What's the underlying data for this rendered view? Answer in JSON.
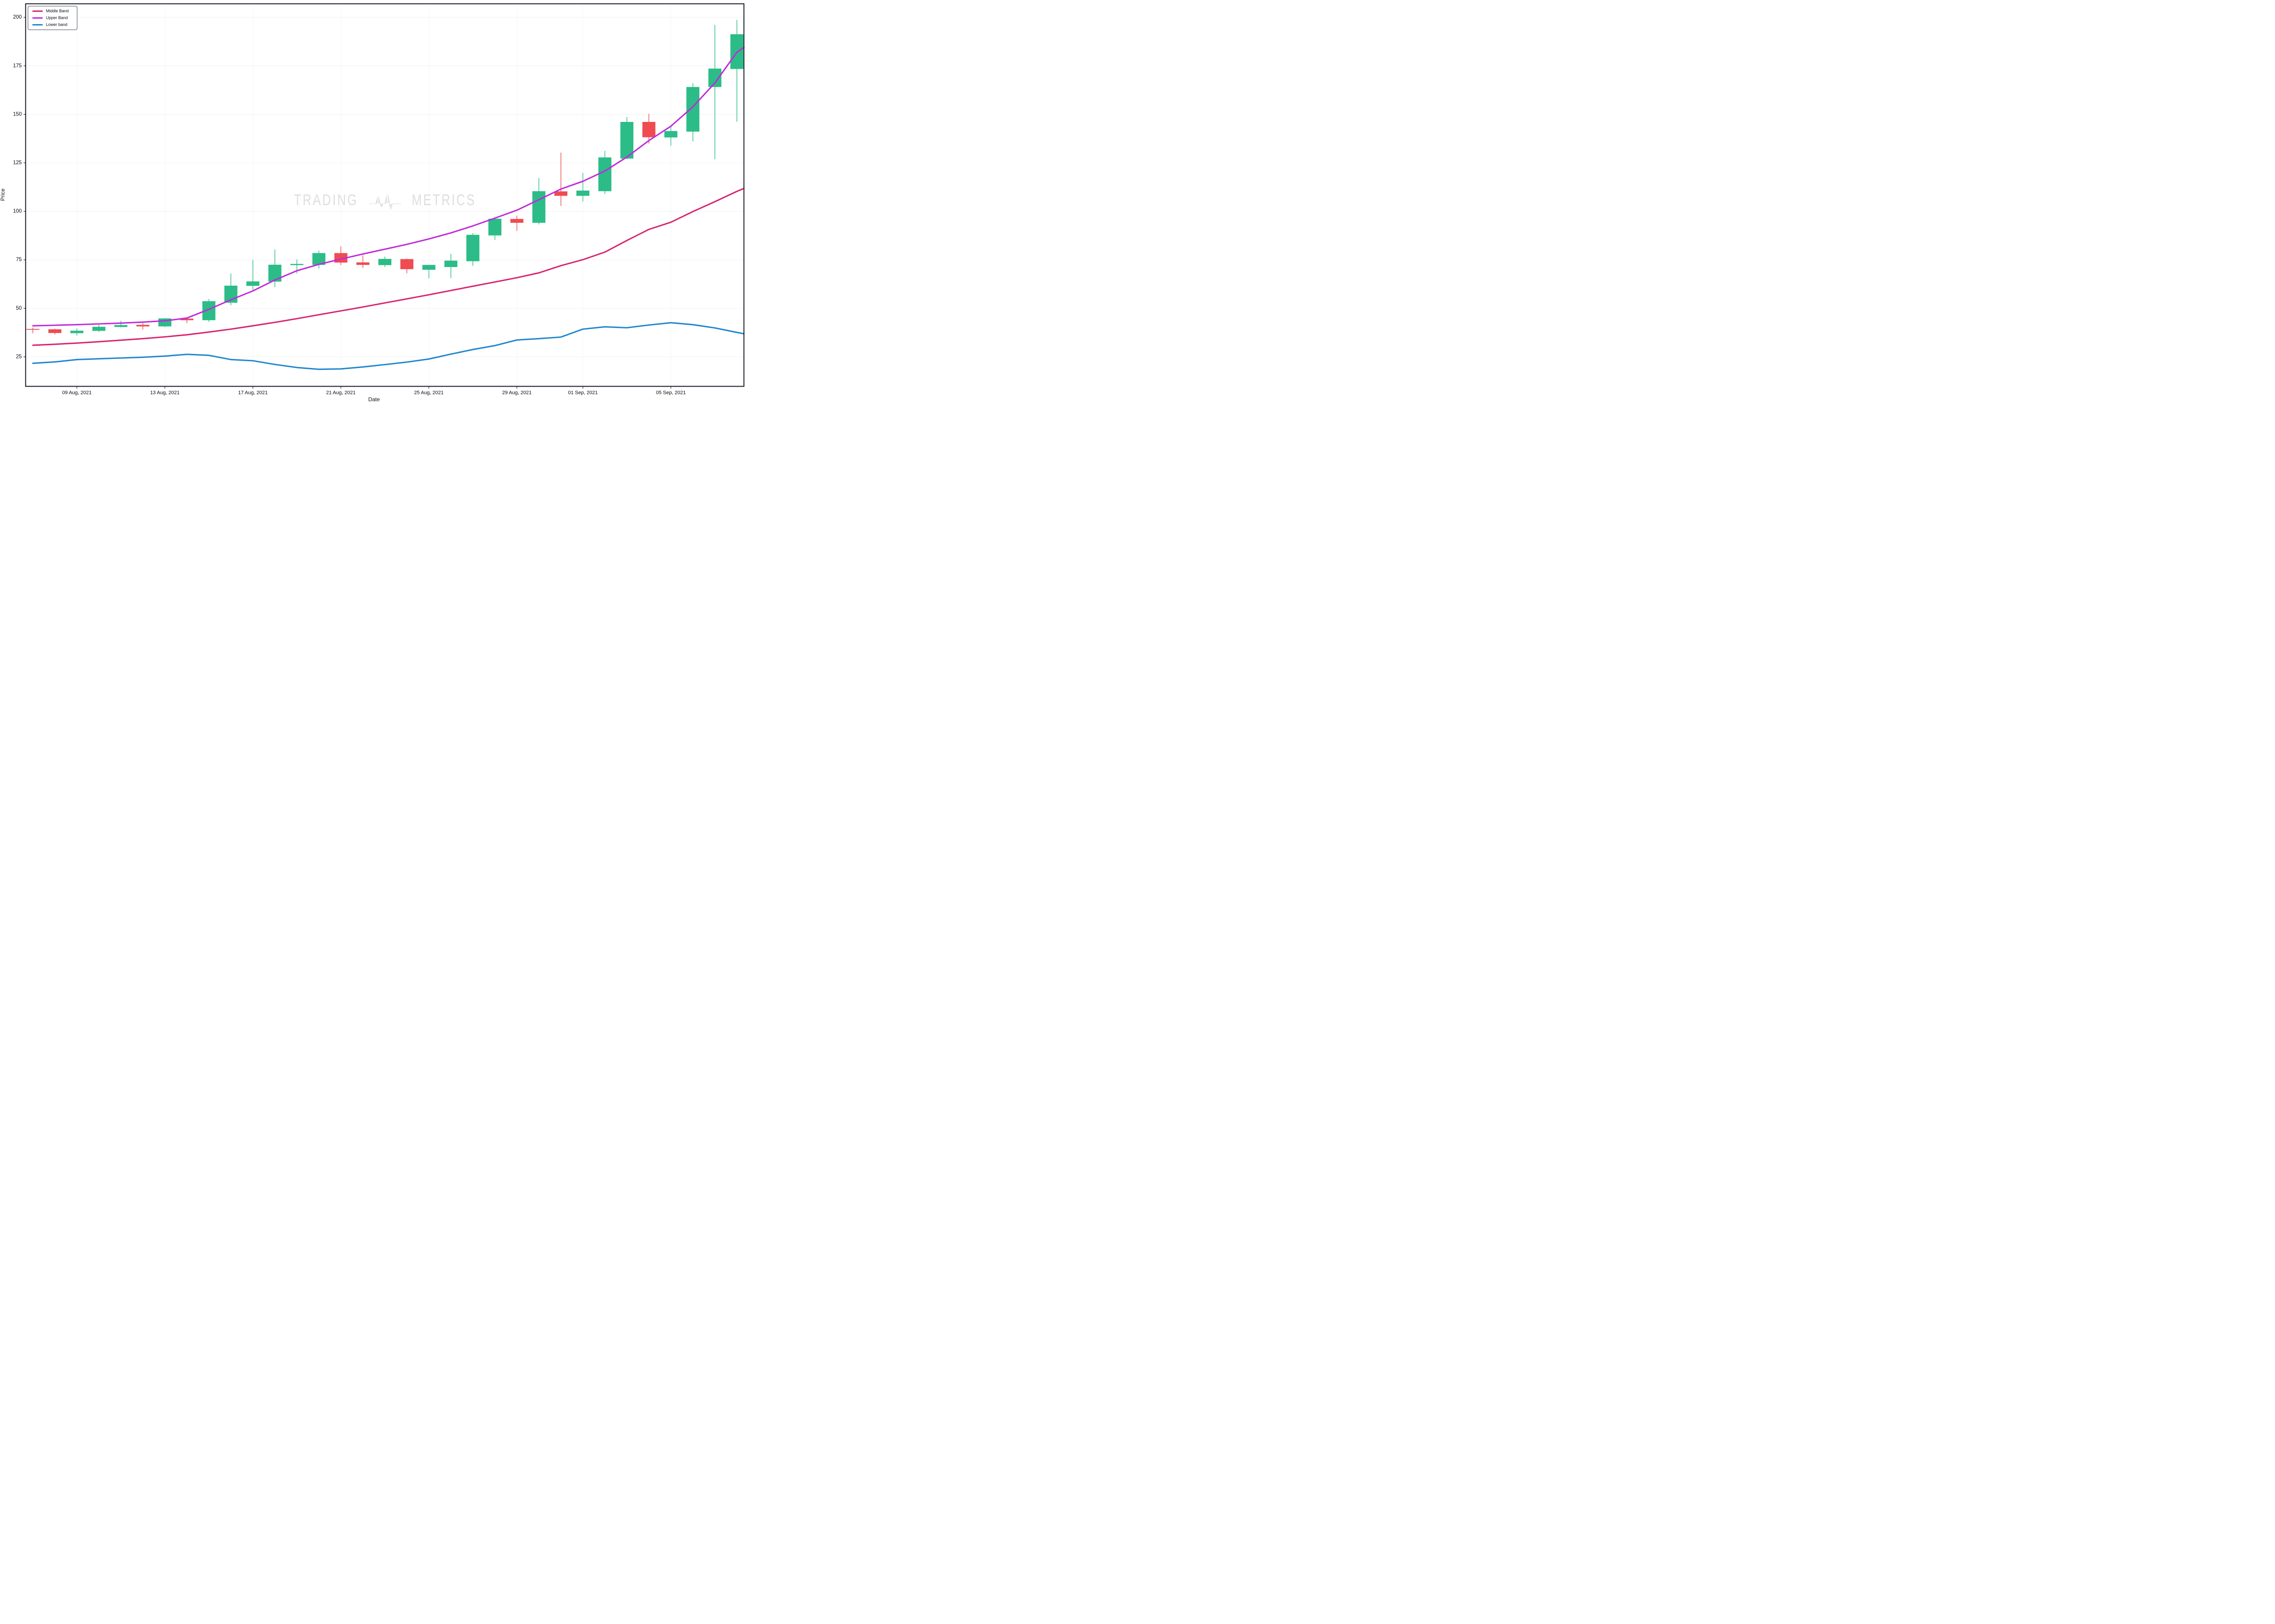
{
  "axes": {
    "x_title": "Date",
    "y_title": "Price"
  },
  "legend": [
    {
      "label": "Middle Band",
      "color": "#D8256F"
    },
    {
      "label": "Upper Band",
      "color": "#C02BD9"
    },
    {
      "label": "Lower band",
      "color": "#1F87CE"
    }
  ],
  "watermark": {
    "left": "TRADING",
    "right": "METRICS"
  },
  "chart_data": {
    "type": "candlestick",
    "title": "",
    "xlabel": "Date",
    "ylabel": "Price",
    "grid": true,
    "legend_position": "top-left",
    "ylim": [
      9.8,
      207.0
    ],
    "xlim_days": [
      -0.33,
      32.32
    ],
    "y_ticks": [
      25,
      50,
      75,
      100,
      125,
      150,
      175,
      200
    ],
    "x_ticks": [
      {
        "index": 2,
        "label": "09 Aug, 2021"
      },
      {
        "index": 6,
        "label": "13 Aug, 2021"
      },
      {
        "index": 10,
        "label": "17 Aug, 2021"
      },
      {
        "index": 14,
        "label": "21 Aug, 2021"
      },
      {
        "index": 18,
        "label": "25 Aug, 2021"
      },
      {
        "index": 22,
        "label": "29 Aug, 2021"
      },
      {
        "index": 25,
        "label": "01 Sep, 2021"
      },
      {
        "index": 29,
        "label": "05 Sep, 2021"
      }
    ],
    "candles": [
      {
        "date": "07 Aug, 2021",
        "open": 39.4,
        "high": 40.1,
        "low": 37.1,
        "close": 39.0
      },
      {
        "date": "08 Aug, 2021",
        "open": 39.2,
        "high": 39.5,
        "low": 36.5,
        "close": 37.3
      },
      {
        "date": "09 Aug, 2021",
        "open": 37.2,
        "high": 39.7,
        "low": 36.0,
        "close": 38.5
      },
      {
        "date": "10 Aug, 2021",
        "open": 38.4,
        "high": 41.5,
        "low": 37.8,
        "close": 40.5
      },
      {
        "date": "11 Aug, 2021",
        "open": 40.4,
        "high": 43.6,
        "low": 40.2,
        "close": 41.4
      },
      {
        "date": "12 Aug, 2021",
        "open": 41.5,
        "high": 43.2,
        "low": 39.0,
        "close": 40.7
      },
      {
        "date": "13 Aug, 2021",
        "open": 40.7,
        "high": 45.0,
        "low": 40.3,
        "close": 44.8
      },
      {
        "date": "14 Aug, 2021",
        "open": 44.7,
        "high": 44.9,
        "low": 42.4,
        "close": 43.9
      },
      {
        "date": "15 Aug, 2021",
        "open": 43.9,
        "high": 54.9,
        "low": 43.0,
        "close": 53.7
      },
      {
        "date": "16 Aug, 2021",
        "open": 52.9,
        "high": 68.0,
        "low": 51.6,
        "close": 61.7
      },
      {
        "date": "17 Aug, 2021",
        "open": 61.6,
        "high": 75.0,
        "low": 59.4,
        "close": 63.9
      },
      {
        "date": "18 Aug, 2021",
        "open": 63.8,
        "high": 80.4,
        "low": 60.9,
        "close": 72.5
      },
      {
        "date": "19 Aug, 2021",
        "open": 72.3,
        "high": 75.2,
        "low": 67.9,
        "close": 72.9
      },
      {
        "date": "20 Aug, 2021",
        "open": 72.4,
        "high": 79.8,
        "low": 70.5,
        "close": 78.5
      },
      {
        "date": "21 Aug, 2021",
        "open": 78.5,
        "high": 82.0,
        "low": 72.3,
        "close": 73.6
      },
      {
        "date": "22 Aug, 2021",
        "open": 73.7,
        "high": 77.4,
        "low": 70.8,
        "close": 72.4
      },
      {
        "date": "23 Aug, 2021",
        "open": 72.3,
        "high": 76.7,
        "low": 71.3,
        "close": 75.5
      },
      {
        "date": "24 Aug, 2021",
        "open": 75.4,
        "high": 75.6,
        "low": 68.1,
        "close": 70.2
      },
      {
        "date": "25 Aug, 2021",
        "open": 69.9,
        "high": 72.5,
        "low": 65.4,
        "close": 72.4
      },
      {
        "date": "26 Aug, 2021",
        "open": 71.3,
        "high": 78.1,
        "low": 65.6,
        "close": 74.6
      },
      {
        "date": "27 Aug, 2021",
        "open": 74.3,
        "high": 88.8,
        "low": 71.9,
        "close": 87.9
      },
      {
        "date": "28 Aug, 2021",
        "open": 87.6,
        "high": 96.4,
        "low": 85.2,
        "close": 96.2
      },
      {
        "date": "29 Aug, 2021",
        "open": 96.1,
        "high": 97.8,
        "low": 89.9,
        "close": 94.1
      },
      {
        "date": "30 Aug, 2021",
        "open": 94.1,
        "high": 117.2,
        "low": 93.3,
        "close": 110.4
      },
      {
        "date": "31 Aug, 2021",
        "open": 110.3,
        "high": 130.3,
        "low": 102.8,
        "close": 108.0
      },
      {
        "date": "01 Sep, 2021",
        "open": 108.0,
        "high": 119.8,
        "low": 105.1,
        "close": 110.7
      },
      {
        "date": "02 Sep, 2021",
        "open": 110.4,
        "high": 131.2,
        "low": 108.9,
        "close": 127.8
      },
      {
        "date": "03 Sep, 2021",
        "open": 127.2,
        "high": 148.6,
        "low": 126.8,
        "close": 146.1
      },
      {
        "date": "04 Sep, 2021",
        "open": 146.1,
        "high": 150.3,
        "low": 135.0,
        "close": 138.2
      },
      {
        "date": "05 Sep, 2021",
        "open": 138.1,
        "high": 144.4,
        "low": 133.8,
        "close": 141.4
      },
      {
        "date": "06 Sep, 2021",
        "open": 141.1,
        "high": 166.1,
        "low": 136.1,
        "close": 164.1
      },
      {
        "date": "07 Sep, 2021",
        "open": 164.1,
        "high": 196.1,
        "low": 126.9,
        "close": 173.6
      },
      {
        "date": "08 Sep, 2021",
        "open": 173.4,
        "high": 198.7,
        "low": 146.2,
        "close": 191.3
      }
    ],
    "series": [
      {
        "name": "Upper Band",
        "color": "#C02BD9",
        "values": [
          41.0,
          41.3,
          41.6,
          42.0,
          42.4,
          42.9,
          43.6,
          45.0,
          49.5,
          54.4,
          59.0,
          64.6,
          69.4,
          72.7,
          75.4,
          78.0,
          80.5,
          83.0,
          85.8,
          88.9,
          92.5,
          96.5,
          100.6,
          106.0,
          111.5,
          115.5,
          120.8,
          128.0,
          136.5,
          143.9,
          153.9,
          166.2,
          182.0
        ],
        "right_edge_value": 184.5
      },
      {
        "name": "Middle Band",
        "color": "#D8256F",
        "values": [
          31.0,
          31.5,
          32.1,
          32.8,
          33.6,
          34.4,
          35.3,
          36.4,
          37.8,
          39.3,
          41.0,
          42.8,
          44.7,
          46.7,
          48.7,
          50.7,
          52.8,
          54.9,
          57.0,
          59.2,
          61.4,
          63.6,
          65.8,
          68.3,
          72.0,
          75.1,
          79.0,
          85.0,
          90.7,
          94.4,
          99.9,
          105.0,
          110.3
        ],
        "right_edge_value": 111.8
      },
      {
        "name": "Lower band",
        "color": "#1F87CE",
        "values": [
          21.7,
          22.4,
          23.6,
          24.0,
          24.4,
          24.8,
          25.4,
          26.3,
          25.8,
          23.6,
          23.0,
          21.1,
          19.5,
          18.6,
          18.8,
          19.8,
          21.0,
          22.3,
          23.9,
          26.4,
          28.8,
          30.8,
          33.7,
          34.4,
          35.2,
          39.3,
          40.5,
          40.0,
          41.4,
          42.6,
          41.6,
          39.9,
          37.6
        ],
        "right_edge_value": 36.9
      }
    ],
    "colors": {
      "up": "#2BBC87",
      "down": "#EF4B51",
      "grid_h": "#F1F1F1",
      "grid_v": "#F6F6F6",
      "spine": "#262A35",
      "tick_text": "#0A0A0A",
      "watermark": "#DEDEDE"
    }
  }
}
